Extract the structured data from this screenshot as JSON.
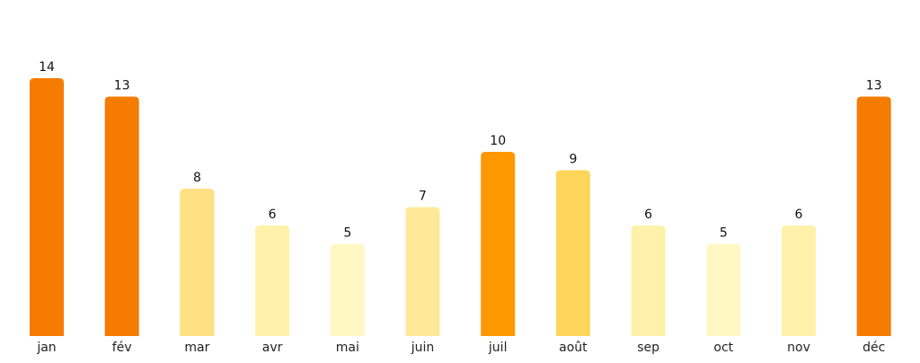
{
  "chart_data": {
    "type": "bar",
    "categories": [
      "jan",
      "fév",
      "mar",
      "avr",
      "mai",
      "juin",
      "juil",
      "août",
      "sep",
      "oct",
      "nov",
      "déc"
    ],
    "values": [
      14,
      13,
      8,
      6,
      5,
      7,
      10,
      9,
      6,
      5,
      6,
      13
    ],
    "bar_colors": [
      "#F57C00",
      "#F57C00",
      "#FFE082",
      "#FFF0AA",
      "#FFF8C4",
      "#FFE898",
      "#FF9800",
      "#FFD55A",
      "#FFF0AA",
      "#FFF8C4",
      "#FFF0AA",
      "#F57C00"
    ],
    "title": "",
    "xlabel": "",
    "ylabel": "",
    "ylim": [
      0,
      14
    ],
    "grid": false,
    "data_labels": true,
    "bar_shape": "rounded-top"
  }
}
